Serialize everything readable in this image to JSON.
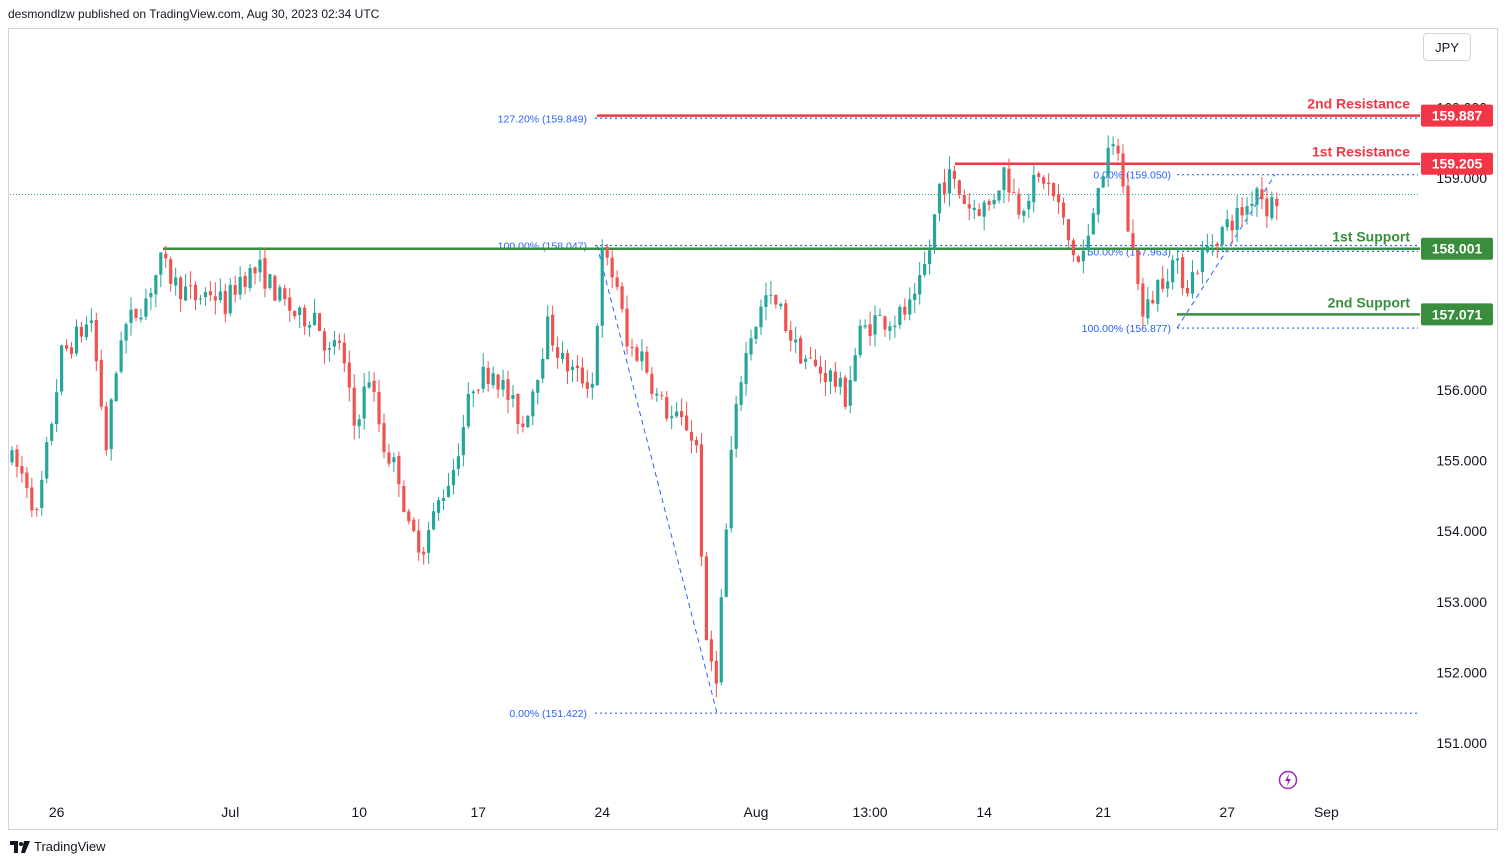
{
  "header": {
    "published": "desmondlzw published on TradingView.com, Aug 30, 2023 02:34 UTC"
  },
  "toolbar": {
    "currency": "JPY"
  },
  "footer": {
    "brand": "TradingView"
  },
  "icons": {
    "brand_logo": "tradingview-logo-icon",
    "replay": "lightning-bolt-icon"
  },
  "colors": {
    "up": "#26a69a",
    "down": "#ef5350",
    "resistance": "#f23645",
    "support": "#388e3c",
    "fib": "#2962ff",
    "text": "#131722"
  },
  "chart_data": {
    "type": "candlestick",
    "symbol_currency": "JPY",
    "ylim": [
      150.5,
      160.3
    ],
    "y_ticks": [
      "151.000",
      "152.000",
      "153.000",
      "154.000",
      "155.000",
      "156.000",
      "157.000",
      "158.000",
      "159.000",
      "160.000"
    ],
    "x_ticks": [
      {
        "label": "26",
        "bar": 9
      },
      {
        "label": "Jul",
        "bar": 44
      },
      {
        "label": "10",
        "bar": 70
      },
      {
        "label": "17",
        "bar": 94
      },
      {
        "label": "24",
        "bar": 119
      },
      {
        "label": "Aug",
        "bar": 150
      },
      {
        "label": "13:00",
        "bar": 173
      },
      {
        "label": "14",
        "bar": 196
      },
      {
        "label": "21",
        "bar": 220
      },
      {
        "label": "27",
        "bar": 245
      },
      {
        "label": "Sep",
        "bar": 265
      }
    ],
    "bar_count": 285,
    "price_keypoints": [
      [
        0,
        155.0
      ],
      [
        3,
        154.7
      ],
      [
        5,
        154.2
      ],
      [
        10,
        156.5
      ],
      [
        16,
        157.0
      ],
      [
        19,
        155.2
      ],
      [
        22,
        156.8
      ],
      [
        27,
        157.3
      ],
      [
        30,
        157.8
      ],
      [
        33,
        157.5
      ],
      [
        37,
        157.3
      ],
      [
        40,
        157.4
      ],
      [
        43,
        157.2
      ],
      [
        46,
        157.6
      ],
      [
        50,
        157.7
      ],
      [
        54,
        157.3
      ],
      [
        58,
        157.0
      ],
      [
        61,
        157.1
      ],
      [
        64,
        156.5
      ],
      [
        66,
        156.7
      ],
      [
        69,
        155.5
      ],
      [
        72,
        156.2
      ],
      [
        75,
        155.2
      ],
      [
        78,
        154.8
      ],
      [
        80,
        154.0
      ],
      [
        83,
        153.8
      ],
      [
        86,
        154.4
      ],
      [
        89,
        154.9
      ],
      [
        93,
        156.1
      ],
      [
        97,
        156.3
      ],
      [
        100,
        155.9
      ],
      [
        103,
        155.5
      ],
      [
        106,
        156.3
      ],
      [
        108,
        156.9
      ],
      [
        111,
        156.4
      ],
      [
        114,
        156.2
      ],
      [
        117,
        156.1
      ],
      [
        119,
        157.9
      ],
      [
        122,
        157.5
      ],
      [
        124,
        156.6
      ],
      [
        127,
        156.5
      ],
      [
        130,
        155.9
      ],
      [
        133,
        155.6
      ],
      [
        136,
        155.5
      ],
      [
        138,
        155.2
      ],
      [
        140,
        152.3
      ],
      [
        142,
        152.0
      ],
      [
        144,
        154.0
      ],
      [
        145,
        155.1
      ],
      [
        147,
        156.2
      ],
      [
        149,
        156.8
      ],
      [
        152,
        157.3
      ],
      [
        155,
        157.1
      ],
      [
        158,
        156.6
      ],
      [
        162,
        156.3
      ],
      [
        165,
        156.2
      ],
      [
        168,
        155.9
      ],
      [
        171,
        156.8
      ],
      [
        174,
        157.0
      ],
      [
        178,
        157.0
      ],
      [
        182,
        157.2
      ],
      [
        185,
        158.0
      ],
      [
        187,
        158.9
      ],
      [
        189,
        159.0
      ],
      [
        193,
        158.6
      ],
      [
        197,
        158.6
      ],
      [
        200,
        159.1
      ],
      [
        203,
        158.6
      ],
      [
        206,
        158.9
      ],
      [
        208,
        159.0
      ],
      [
        211,
        158.6
      ],
      [
        213,
        158.1
      ],
      [
        215,
        157.8
      ],
      [
        217,
        158.1
      ],
      [
        219,
        159.0
      ],
      [
        222,
        159.4
      ],
      [
        223,
        159.4
      ],
      [
        225,
        158.3
      ],
      [
        227,
        157.6
      ],
      [
        228,
        157.0
      ],
      [
        231,
        157.5
      ],
      [
        234,
        157.8
      ],
      [
        237,
        157.5
      ],
      [
        240,
        157.9
      ],
      [
        243,
        158.2
      ],
      [
        246,
        158.4
      ],
      [
        249,
        158.6
      ],
      [
        251,
        158.9
      ],
      [
        253,
        158.6
      ],
      [
        255,
        158.7
      ]
    ],
    "levels": [
      {
        "label": "2nd Resistance",
        "value": 159.887,
        "badge": "159.887",
        "kind": "resistance"
      },
      {
        "label": "1st Resistance",
        "value": 159.205,
        "badge": "159.205",
        "kind": "resistance"
      },
      {
        "label": "1st Support",
        "value": 158.001,
        "badge": "158.001",
        "kind": "support"
      },
      {
        "label": "2nd Support",
        "value": 157.071,
        "badge": "157.071",
        "kind": "support"
      }
    ],
    "fib_labels": [
      {
        "text": "127.20% (159.849)",
        "value": 159.849
      },
      {
        "text": "100.00% (158.047)",
        "value": 158.047
      },
      {
        "text": "0.00% (151.422)",
        "value": 151.422
      },
      {
        "text": "0.00% (159.050)",
        "value": 159.05
      },
      {
        "text": "50.00% (157.963)",
        "value": 157.963
      },
      {
        "text": "100.00% (156.877)",
        "value": 156.877
      }
    ],
    "last_price": 158.77
  }
}
